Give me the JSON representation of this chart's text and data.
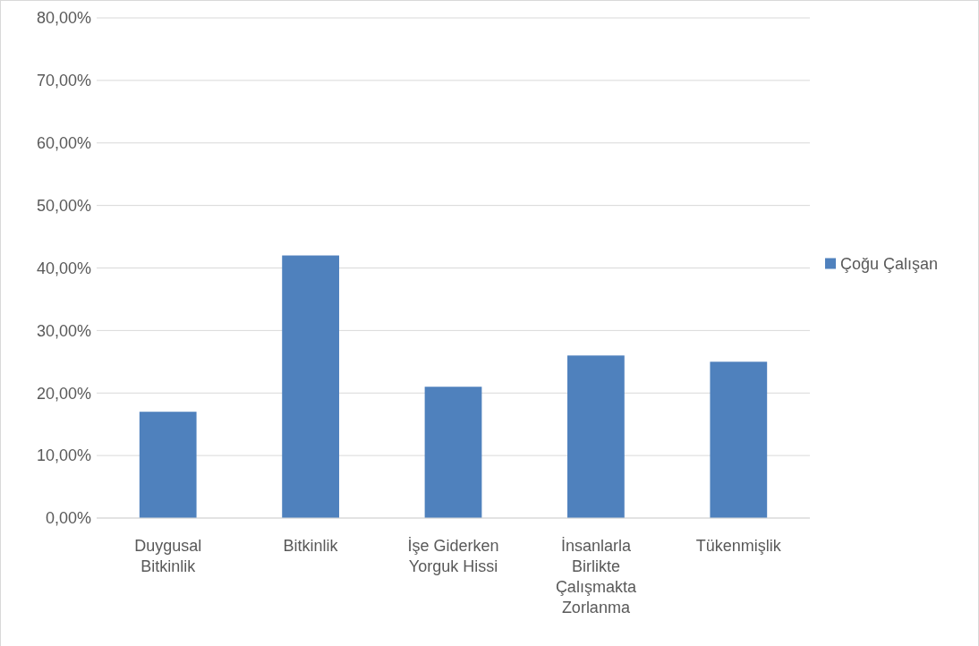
{
  "chart_data": {
    "type": "bar",
    "categories": [
      "Duygusal Bitkinlik",
      "Bitkinlik",
      "İşe Giderken Yorguk Hissi",
      "İnsanlarla Birlikte Çalışmakta Zorlanma",
      "Tükenmişlik"
    ],
    "series": [
      {
        "name": "Çoğu Çalışan",
        "color": "#4f81bd",
        "values": [
          17,
          42,
          21,
          26,
          25
        ]
      }
    ],
    "ylim": [
      0,
      80
    ],
    "yticks": [
      {
        "value": 0,
        "label": "0,00%"
      },
      {
        "value": 10,
        "label": "10,00%"
      },
      {
        "value": 20,
        "label": "20,00%"
      },
      {
        "value": 30,
        "label": "30,00%"
      },
      {
        "value": 40,
        "label": "40,00%"
      },
      {
        "value": 50,
        "label": "50,00%"
      },
      {
        "value": 60,
        "label": "60,00%"
      },
      {
        "value": 70,
        "label": "70,00%"
      },
      {
        "value": 80,
        "label": "80,00%"
      }
    ],
    "grid": "y",
    "legend": "right"
  }
}
